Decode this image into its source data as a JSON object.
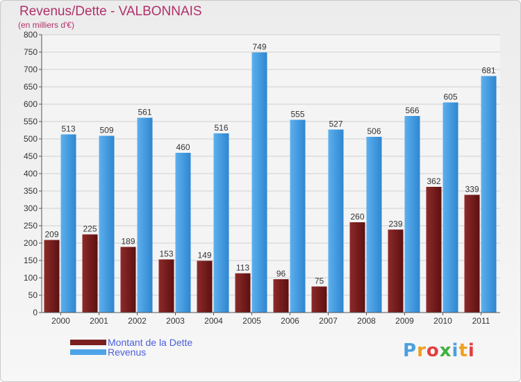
{
  "header": {
    "title": "Revenus/Dette - VALBONNAIS",
    "subtitle": "(en milliers d'€)"
  },
  "chart_data": {
    "type": "bar",
    "title": "Revenus/Dette - VALBONNAIS",
    "ylabel": "(en milliers d'€)",
    "categories": [
      "2000",
      "2001",
      "2002",
      "2003",
      "2004",
      "2005",
      "2006",
      "2007",
      "2008",
      "2009",
      "2010",
      "2011"
    ],
    "series": [
      {
        "name": "Montant de la Dette",
        "color": "#7a1f1f",
        "values": [
          209,
          225,
          189,
          153,
          149,
          113,
          96,
          75,
          260,
          239,
          362,
          339
        ]
      },
      {
        "name": "Revenus",
        "color": "#4da3e8",
        "values": [
          513,
          509,
          561,
          460,
          516,
          749,
          555,
          527,
          506,
          566,
          605,
          681
        ]
      }
    ],
    "ylim": [
      0,
      800
    ],
    "yticks": [
      0,
      50,
      100,
      150,
      200,
      250,
      300,
      350,
      400,
      450,
      500,
      550,
      600,
      650,
      700,
      750,
      800
    ],
    "grid": true,
    "legend": "bottom-left"
  },
  "legend": {
    "items": [
      {
        "label": "Montant de la Dette",
        "color": "#7a1f1f"
      },
      {
        "label": "Revenus",
        "color": "#4da3e8"
      }
    ]
  },
  "logo": {
    "letters": [
      "P",
      "r",
      "o",
      "x",
      "i",
      "t",
      "i"
    ],
    "colors": [
      "#4aa0e0",
      "#f0a020",
      "#e04040",
      "#40b040",
      "#4aa0e0",
      "#f0a020",
      "#e04040"
    ]
  }
}
